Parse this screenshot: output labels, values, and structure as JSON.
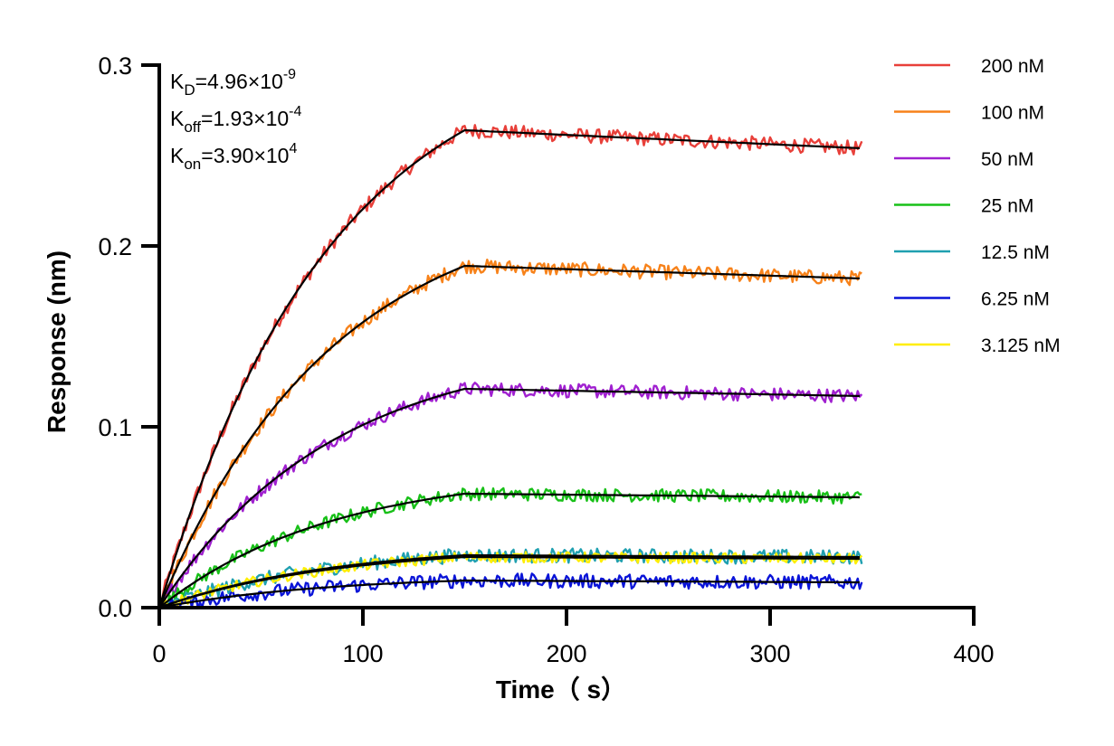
{
  "chart_data": {
    "type": "line",
    "title": "",
    "xlabel": "Time（ s）",
    "ylabel": "Response (nm)",
    "xlim": [
      0,
      400
    ],
    "ylim": [
      0,
      0.3
    ],
    "xticks": [
      0,
      100,
      200,
      300,
      400
    ],
    "xtick_labels": [
      "0",
      "100",
      "200",
      "300",
      "400"
    ],
    "yticks": [
      0.0,
      0.1,
      0.2,
      0.3
    ],
    "ytick_labels": [
      "0.0",
      "0.1",
      "0.2",
      "0.3"
    ],
    "grid": false,
    "legend_position": "top-right",
    "association_end_time": 150,
    "end_time": 345,
    "fit_line_color": "#000000",
    "annotations": [
      {
        "name": "kd",
        "base": "K",
        "sub": "D",
        "value": "=4.96×10",
        "exp": "-9"
      },
      {
        "name": "koff",
        "base": "K",
        "sub": "off",
        "value": "=1.93×10",
        "exp": "-4"
      },
      {
        "name": "kon",
        "base": "K",
        "sub": "on",
        "value": "=3.90×10",
        "exp": "4"
      }
    ],
    "series": [
      {
        "name": "200 nM",
        "color": "#e8403a",
        "plateau": 0.264,
        "end_value": 0.254,
        "noise": 0.004
      },
      {
        "name": "100 nM",
        "color": "#f7821a",
        "plateau": 0.189,
        "end_value": 0.182,
        "noise": 0.004
      },
      {
        "name": "50 nM",
        "color": "#a020d0",
        "plateau": 0.121,
        "end_value": 0.117,
        "noise": 0.0038
      },
      {
        "name": "25 nM",
        "color": "#18c018",
        "plateau": 0.063,
        "end_value": 0.061,
        "noise": 0.0036
      },
      {
        "name": "12.5 nM",
        "color": "#1fa0b0",
        "plateau": 0.029,
        "end_value": 0.028,
        "noise": 0.004
      },
      {
        "name": "6.25 nM",
        "color": "#0a14d8",
        "plateau": 0.015,
        "end_value": 0.014,
        "noise": 0.004
      },
      {
        "name": "3.125 nM",
        "color": "#ffee00",
        "plateau": 0.028,
        "end_value": 0.027,
        "noise": 0.003
      }
    ]
  }
}
